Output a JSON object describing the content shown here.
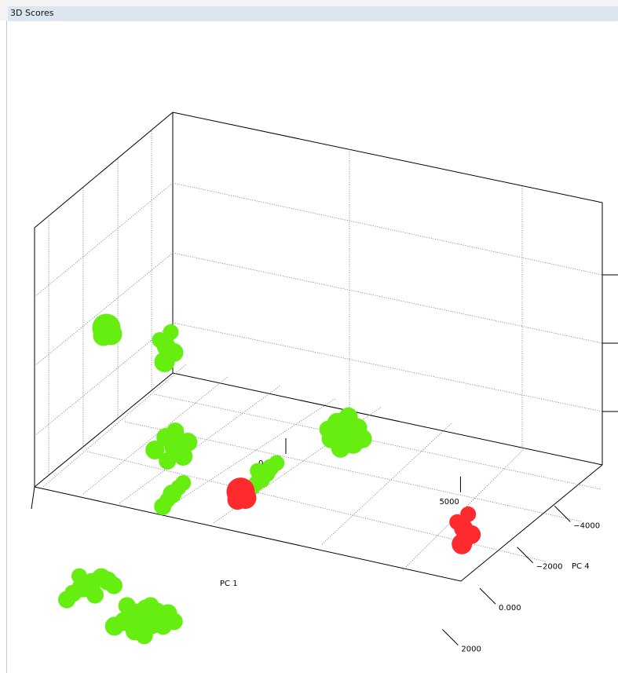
{
  "window": {
    "title": "3D Scores"
  },
  "colors": {
    "group_red": "#ff2a2e",
    "group_green": "#66ee10"
  },
  "chart_data": {
    "type": "scatter",
    "title": "",
    "projection": "3d",
    "xlabel": "PC 1",
    "ylabel": "PC 4",
    "zlabel": "",
    "x_ticks": [
      0,
      5000
    ],
    "x_tick_labels": [
      "0.000",
      "5000"
    ],
    "y_ticks": [
      2000,
      0,
      -2000,
      -4000
    ],
    "y_tick_labels": [
      "2000",
      "0.000",
      "−2000",
      "−4000"
    ],
    "grid": true,
    "series": [
      {
        "color": "#66ee10",
        "points": [
          {
            "x": -3200,
            "y": -500,
            "z": 3.2
          },
          {
            "x": -2600,
            "y": -2600,
            "z": 2.1
          },
          {
            "x": -1200,
            "y": -500,
            "z": 1.2
          },
          {
            "x": 1200,
            "y": -600,
            "z": 0.9
          },
          {
            "x": 1800,
            "y": -4000,
            "z": 0.5
          },
          {
            "x": -1700,
            "y": -1300,
            "z": -0.1
          },
          {
            "x": -2600,
            "y": 1800,
            "z": -0.8
          },
          {
            "x": -3000,
            "y": -1800,
            "z": -2.8
          }
        ]
      },
      {
        "color": "#ff2a2e",
        "points": [
          {
            "x": 2000,
            "y": 2000,
            "z": 1.8
          },
          {
            "x": 7000,
            "y": -600,
            "z": 0.8
          }
        ]
      }
    ]
  }
}
